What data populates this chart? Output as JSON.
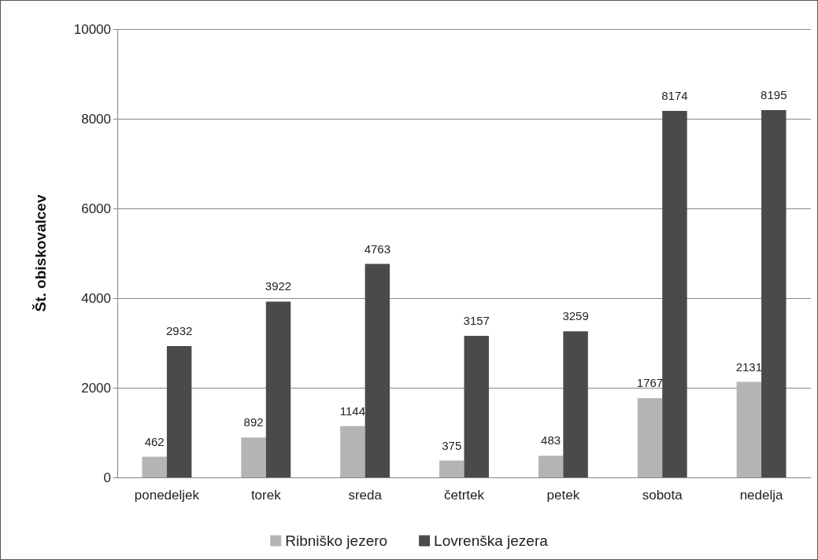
{
  "chart_data": {
    "type": "bar",
    "ylabel": "Št. obiskovalcev",
    "categories": [
      "ponedeljek",
      "torek",
      "sreda",
      "četrtek",
      "petek",
      "sobota",
      "nedelja"
    ],
    "series": [
      {
        "name": "Ribniško jezero",
        "color": "#b4b4b4",
        "values": [
          462,
          892,
          1144,
          375,
          483,
          1767,
          2131
        ]
      },
      {
        "name": "Lovrenška jezera",
        "color": "#4a4a4a",
        "values": [
          2932,
          3922,
          4763,
          3157,
          3259,
          8174,
          8195
        ]
      }
    ],
    "ylim": [
      0,
      10000
    ],
    "yticks": [
      0,
      2000,
      4000,
      6000,
      8000,
      10000
    ],
    "grid": "y",
    "legend": "bottom",
    "data_labels": true
  }
}
